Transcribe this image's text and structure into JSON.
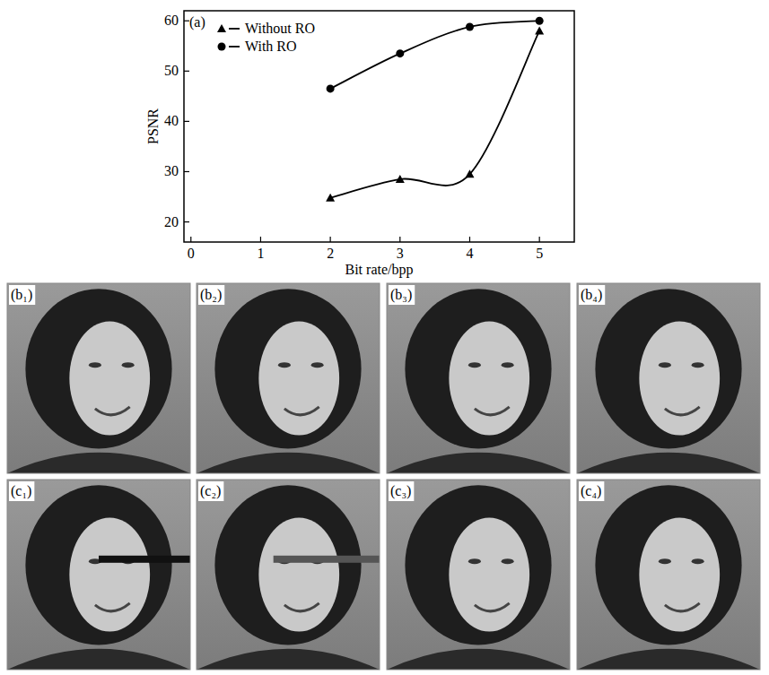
{
  "chart_data": {
    "type": "line",
    "title": "(a)",
    "x_label": "Bit rate/bpp",
    "y_label": "PSNR",
    "xlim": [
      -0.1,
      5.5
    ],
    "xticks": [
      0,
      1,
      2,
      3,
      4,
      5
    ],
    "ylim": [
      16,
      62
    ],
    "yticks": [
      20,
      30,
      40,
      50,
      60
    ],
    "grid": false,
    "legend": "upper left",
    "series": [
      {
        "name": "Without RO",
        "color": "#000000",
        "marker": "triangle",
        "line_style": "solid",
        "x": [
          2,
          3,
          4,
          5
        ],
        "values": [
          24.8,
          28.5,
          29.5,
          58.0
        ]
      },
      {
        "name": "With RO",
        "color": "#000000",
        "marker": "circle",
        "line_style": "solid",
        "x": [
          2,
          3,
          4,
          5
        ],
        "values": [
          46.5,
          53.5,
          58.8,
          60.0
        ]
      }
    ]
  },
  "panels": [
    {
      "label": "(b₁)"
    },
    {
      "label": "(b₂)"
    },
    {
      "label": "(b₃)"
    },
    {
      "label": "(b₄)"
    },
    {
      "label": "(c₁)"
    },
    {
      "label": "(c₂)"
    },
    {
      "label": "(c₃)"
    },
    {
      "label": "(c₄)"
    }
  ]
}
